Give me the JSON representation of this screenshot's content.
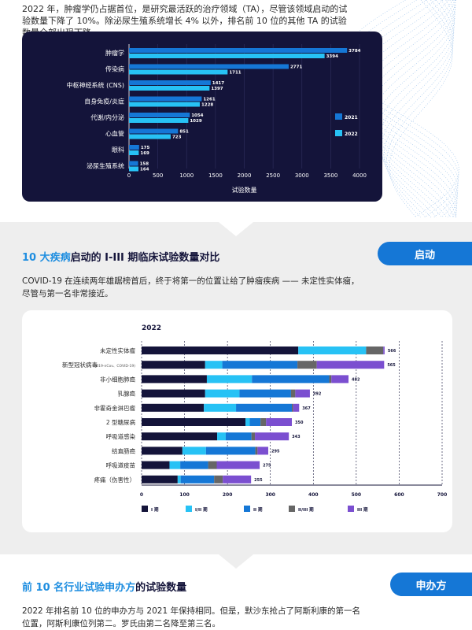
{
  "intro_text": "2022 年，肿瘤学仍占据首位，是研究最活跃的治疗领域（TA），尽管该领域启动的试验数量下降了 10%。除泌尿生殖系统增长 4% 以外，排名前 10 位的其他 TA 的试验数量全部出现下降。",
  "section1": {
    "title_highlight": "10 大疾病",
    "title_rest": "启动的 I-III 期临床试验数量对比",
    "pill": "启动",
    "paragraph": "COVID-19 在连续两年雄踞榜首后，终于将第一的位置让给了肿瘤疾病 —— 未定性实体瘤，尽管与第一名非常接近。"
  },
  "section2": {
    "title_highlight": "前 10 名行业试验申办方",
    "title_rest": "的试验数量",
    "pill": "申办方",
    "paragraph": "2022 年排名前 10 位的申办方与 2021 年保持相同。但是，默沙东抢占了阿斯利康的第一名位置，阿斯利康位列第二。罗氏由第二名降至第三名。"
  },
  "chart_data": [
    {
      "type": "bar",
      "orientation": "horizontal",
      "categories": [
        "肿瘤学",
        "传染病",
        "中枢神经系统 (CNS)",
        "自身免疫/炎症",
        "代谢/内分泌",
        "心血管",
        "眼科",
        "泌尿生殖系统"
      ],
      "series": [
        {
          "name": "2021",
          "values": [
            3784,
            2771,
            1417,
            1261,
            1054,
            851,
            175,
            158
          ]
        },
        {
          "name": "2022",
          "values": [
            3394,
            1711,
            1397,
            1228,
            1029,
            723,
            169,
            164
          ]
        }
      ],
      "xlabel": "试验数量",
      "xlim": [
        0,
        4000
      ],
      "xticks": [
        0,
        500,
        1000,
        1500,
        2000,
        2500,
        3000,
        3500,
        4000
      ],
      "legend": "right",
      "colors": {
        "2021": "#1577d6",
        "2022": "#27c2f5"
      }
    },
    {
      "type": "bar",
      "orientation": "horizontal",
      "stacked": true,
      "title": "2022",
      "categories": [
        "未定性实体瘤",
        "新型冠状病毒",
        "非小细胞肺癌",
        "乳腺癌",
        "非霍奇金淋巴瘤",
        "2 型糖尿病",
        "呼吸道感染",
        "结直肠癌",
        "呼吸道疫苗",
        "疼痛（伤害性）"
      ],
      "category_notes": {
        "新型冠状病毒": "(2019-nCov、COVID-19)"
      },
      "totals": [
        566,
        565,
        482,
        392,
        367,
        350,
        343,
        295,
        275,
        255
      ],
      "series": [
        {
          "name": "I 期",
          "values": [
            365,
            148,
            152,
            148,
            145,
            242,
            176,
            95,
            65,
            84
          ]
        },
        {
          "name": "I/II 期",
          "values": [
            158,
            40,
            105,
            80,
            75,
            10,
            20,
            55,
            25,
            7
          ]
        },
        {
          "name": "II 期",
          "values": [
            0,
            175,
            180,
            120,
            130,
            25,
            60,
            115,
            65,
            78
          ]
        },
        {
          "name": "II/III 期",
          "values": [
            40,
            45,
            5,
            10,
            3,
            13,
            8,
            5,
            20,
            20
          ]
        },
        {
          "name": "III 期",
          "values": [
            3,
            157,
            40,
            34,
            14,
            60,
            79,
            25,
            100,
            66
          ]
        }
      ],
      "xlim": [
        0,
        700
      ],
      "xticks": [
        0,
        100,
        200,
        300,
        400,
        500,
        600,
        700
      ],
      "legend": "bottom",
      "colors": {
        "I 期": "#14143a",
        "I/II 期": "#27c2f5",
        "II 期": "#1577d6",
        "II/III 期": "#666666",
        "III 期": "#7b4fd0"
      }
    }
  ]
}
